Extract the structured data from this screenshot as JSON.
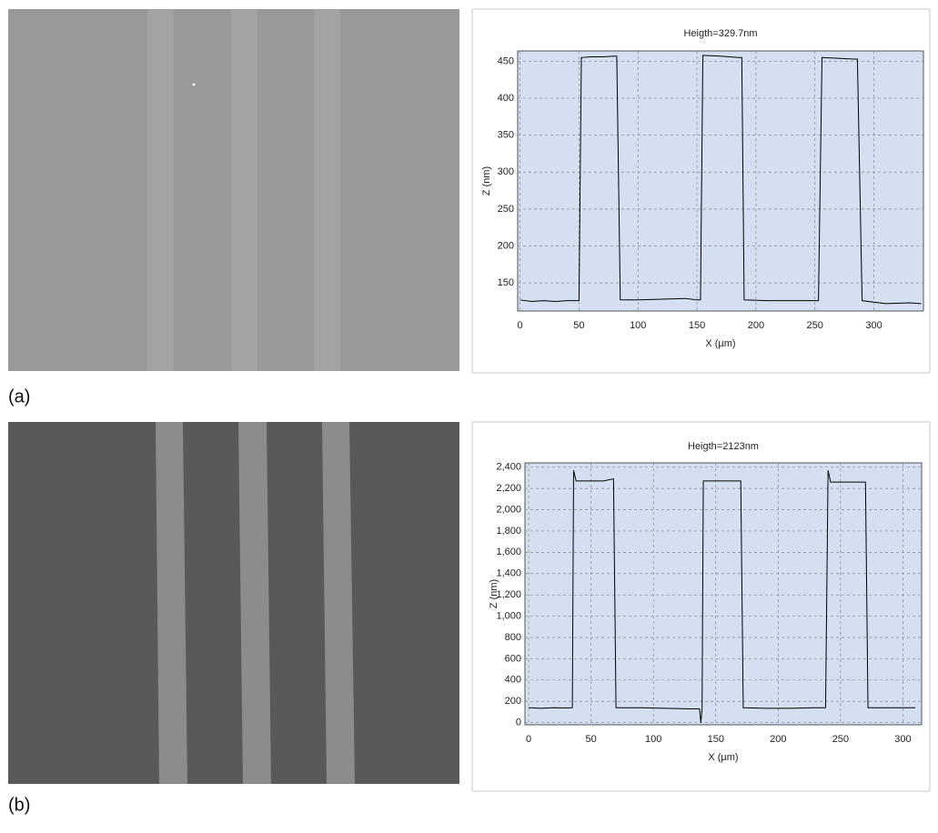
{
  "panel_labels": [
    "(a)",
    "(b)"
  ],
  "chart_data": [
    {
      "type": "line",
      "title": "Heigth=329.7nm",
      "x_label": "X (µm)",
      "y_label": "Z (nm)",
      "color": "#000000",
      "grid": true,
      "xlim": [
        -2,
        342
      ],
      "ylim": [
        112,
        464
      ],
      "xticks": [
        0,
        50,
        100,
        150,
        200,
        250,
        300
      ],
      "yticks": [
        150,
        200,
        250,
        300,
        350,
        400,
        450
      ],
      "x": [
        0,
        10,
        20,
        30,
        40,
        50,
        52,
        60,
        70,
        80,
        82,
        85,
        100,
        120,
        140,
        150,
        153,
        155,
        170,
        185,
        188,
        190,
        210,
        230,
        250,
        253,
        256,
        270,
        283,
        286,
        290,
        310,
        330,
        340
      ],
      "values": [
        127,
        125,
        126,
        125,
        126,
        126,
        455,
        456,
        456,
        457,
        457,
        127,
        127,
        128,
        129,
        127,
        127,
        458,
        457,
        455,
        455,
        127,
        126,
        126,
        126,
        126,
        455,
        454,
        453,
        453,
        126,
        122,
        123,
        122
      ]
    },
    {
      "type": "line",
      "title": "Heigth=2123nm",
      "x_label": "X (µm)",
      "y_label": "Z (nm)",
      "color": "#000000",
      "grid": true,
      "xlim": [
        -3,
        315
      ],
      "ylim": [
        -20,
        2440
      ],
      "xticks": [
        0,
        50,
        100,
        150,
        200,
        250,
        300
      ],
      "yticks": [
        0,
        200,
        400,
        600,
        800,
        {
          "value": 1000,
          "label": "1,000"
        },
        {
          "value": 1200,
          "label": "1,200"
        },
        {
          "value": 1400,
          "label": "1,400"
        },
        {
          "value": 1600,
          "label": "1,600"
        },
        {
          "value": 1800,
          "label": "1,800"
        },
        {
          "value": 2000,
          "label": "2,000"
        },
        {
          "value": 2200,
          "label": "2,200"
        },
        {
          "value": 2400,
          "label": "2,400"
        }
      ],
      "x": [
        0,
        10,
        20,
        30,
        35,
        36,
        38,
        50,
        60,
        68,
        70,
        90,
        110,
        130,
        137,
        138,
        139,
        140,
        155,
        170,
        172,
        190,
        210,
        230,
        238,
        240,
        242,
        255,
        270,
        272,
        290,
        310
      ],
      "values": [
        140,
        135,
        140,
        138,
        140,
        2370,
        2270,
        2270,
        2270,
        2290,
        140,
        140,
        135,
        130,
        130,
        0,
        130,
        2270,
        2270,
        2270,
        140,
        135,
        135,
        140,
        140,
        2370,
        2260,
        2260,
        2260,
        140,
        140,
        140
      ]
    }
  ]
}
